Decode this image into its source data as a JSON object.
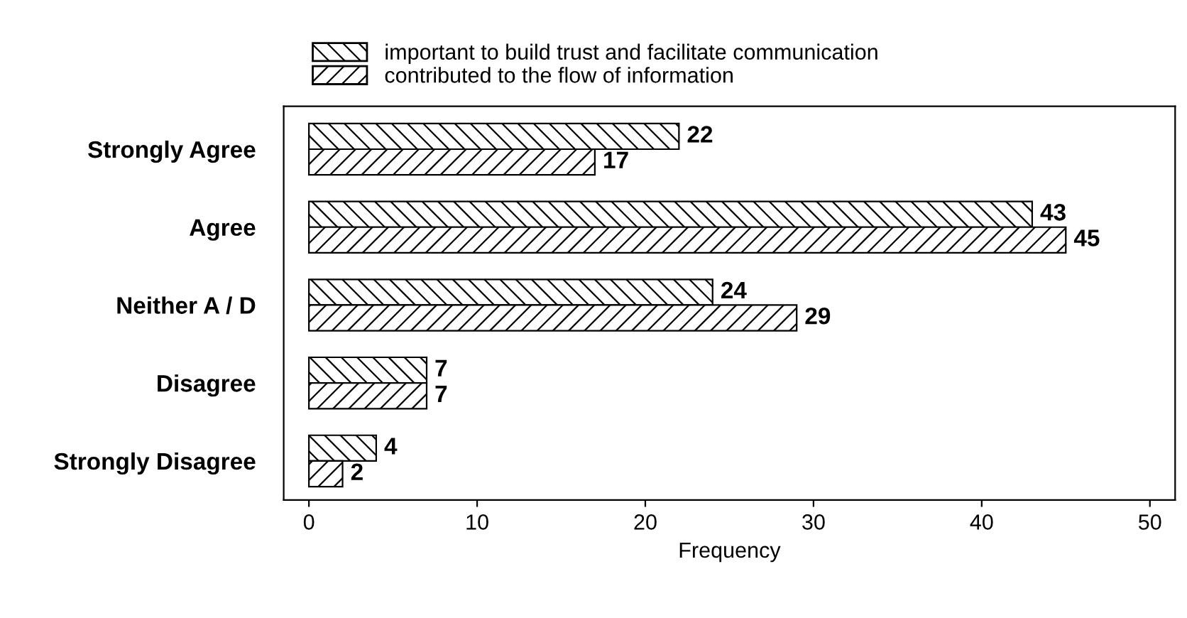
{
  "chart_data": {
    "type": "bar",
    "orientation": "horizontal",
    "categories": [
      "Strongly Agree",
      "Agree",
      "Neither A / D",
      "Disagree",
      "Strongly Disagree"
    ],
    "series": [
      {
        "name": "important to build trust and facilitate communication",
        "color": "#000000",
        "values": [
          22,
          43,
          24,
          7,
          4
        ]
      },
      {
        "name": "contributed to the flow of information",
        "color": "#000000",
        "values": [
          17,
          45,
          29,
          7,
          2
        ]
      }
    ],
    "xlabel": "Frequency",
    "xlim": [
      -1.5,
      51.5
    ],
    "xticks": [
      0,
      10,
      20,
      30,
      40,
      50
    ],
    "data_labels": true,
    "legend": "top",
    "grid": false
  }
}
